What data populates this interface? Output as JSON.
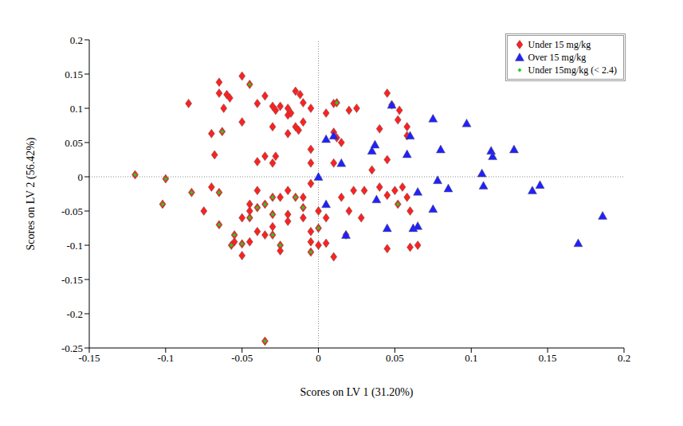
{
  "chart_data": {
    "type": "scatter",
    "x_label": "Scores on LV 1 (31.20%)",
    "y_label": "Scores on LV 2 (56.42%)",
    "xlim": [
      -0.15,
      0.2
    ],
    "xticks": [
      -0.15,
      -0.1,
      -0.05,
      0,
      0.05,
      0.1,
      0.15,
      0.2
    ],
    "ylim": [
      -0.25,
      0.2
    ],
    "yticks": [
      -0.25,
      -0.2,
      -0.15,
      -0.1,
      -0.05,
      0,
      0.05,
      0.1,
      0.15,
      0.2
    ],
    "grid": false,
    "legend": "upper right",
    "series": [
      {
        "name": "Under 15 mg/kg",
        "color": "#ff2020",
        "marker": "diamond",
        "x": [
          -0.085,
          -0.065,
          -0.065,
          -0.06,
          -0.062,
          -0.058,
          -0.05,
          -0.07,
          -0.063,
          -0.068,
          -0.05,
          -0.045,
          -0.04,
          -0.035,
          -0.04,
          -0.03,
          -0.028,
          -0.025,
          -0.02,
          -0.02,
          -0.018,
          -0.015,
          -0.012,
          -0.01,
          -0.01,
          -0.015,
          -0.013,
          -0.02,
          -0.005,
          -0.035,
          -0.028,
          -0.03,
          -0.03,
          -0.005,
          0.005,
          0.01,
          0.012,
          0.01,
          0.012,
          0.015,
          0.02,
          0.025,
          0.01,
          0.04,
          0.045,
          0.048,
          0.053,
          0.052,
          0.058,
          0.058,
          0.045,
          0.035,
          -0.005,
          -0.12,
          -0.1,
          -0.102,
          -0.083,
          -0.07,
          -0.065,
          -0.075,
          -0.065,
          -0.055,
          -0.055,
          -0.057,
          -0.05,
          -0.05,
          -0.045,
          -0.045,
          -0.04,
          -0.035,
          -0.03,
          -0.035,
          -0.04,
          -0.045,
          -0.03,
          -0.025,
          -0.02,
          -0.02,
          -0.02,
          -0.025,
          -0.025,
          -0.01,
          -0.01,
          -0.01,
          -0.005,
          0.0,
          0.005,
          -0.005,
          -0.005,
          0.0,
          0.005,
          -0.005,
          0.01,
          0.015,
          0.02,
          0.023,
          0.028,
          0.03,
          0.04,
          0.045,
          0.05,
          0.045,
          0.055,
          0.06,
          0.052,
          0.058,
          0.06,
          0.065,
          0.018,
          -0.035,
          -0.05,
          -0.045,
          -0.04,
          -0.03,
          -0.03,
          -0.015,
          0.0
        ],
        "y": [
          0.107,
          0.138,
          0.122,
          0.12,
          0.1,
          0.115,
          0.08,
          0.063,
          0.066,
          0.032,
          0.147,
          0.135,
          0.107,
          0.03,
          0.022,
          0.103,
          0.097,
          0.103,
          0.1,
          0.09,
          0.093,
          0.125,
          0.12,
          0.108,
          0.08,
          0.073,
          0.068,
          0.063,
          0.1,
          0.118,
          0.03,
          0.02,
          0.073,
          0.04,
          0.093,
          0.107,
          0.108,
          0.065,
          0.057,
          0.05,
          0.097,
          0.1,
          0.02,
          0.07,
          0.122,
          0.105,
          0.097,
          0.083,
          0.073,
          0.06,
          0.025,
          0.01,
          0.02,
          0.003,
          -0.003,
          -0.04,
          -0.023,
          -0.015,
          -0.023,
          -0.05,
          -0.07,
          -0.085,
          -0.095,
          -0.1,
          -0.115,
          -0.06,
          -0.05,
          -0.04,
          -0.02,
          -0.04,
          -0.055,
          -0.085,
          -0.08,
          -0.095,
          -0.073,
          -0.03,
          -0.02,
          -0.055,
          -0.065,
          -0.1,
          -0.108,
          -0.06,
          -0.045,
          -0.03,
          -0.01,
          -0.05,
          -0.06,
          -0.08,
          -0.11,
          -0.1,
          -0.097,
          -0.095,
          -0.117,
          -0.03,
          -0.05,
          -0.02,
          -0.06,
          -0.02,
          -0.015,
          -0.027,
          -0.02,
          -0.105,
          -0.015,
          -0.05,
          -0.04,
          -0.03,
          -0.103,
          -0.1,
          -0.085,
          -0.24,
          -0.098,
          -0.06,
          -0.045,
          -0.03,
          -0.085,
          -0.03,
          -0.075
        ]
      },
      {
        "name": "Over 15 mg/kg",
        "color": "#2020ff",
        "marker": "triangle",
        "x": [
          0.005,
          0.01,
          0.0,
          0.005,
          0.015,
          0.018,
          0.035,
          0.037,
          0.038,
          0.045,
          0.048,
          0.058,
          0.06,
          0.062,
          0.065,
          0.065,
          0.075,
          0.078,
          0.08,
          0.085,
          0.075,
          0.097,
          0.107,
          0.108,
          0.113,
          0.114,
          0.128,
          0.14,
          0.145,
          0.17,
          0.186
        ],
        "y": [
          0.055,
          0.06,
          0.0,
          -0.04,
          0.02,
          -0.085,
          0.038,
          0.047,
          -0.033,
          -0.075,
          0.105,
          0.033,
          0.06,
          -0.075,
          -0.072,
          -0.022,
          0.085,
          -0.005,
          0.04,
          -0.017,
          -0.047,
          0.078,
          0.005,
          -0.013,
          0.038,
          0.03,
          0.04,
          -0.02,
          -0.012,
          -0.097,
          -0.057
        ]
      },
      {
        "name": "Under 15mg/kg (< 2.4)",
        "color": "#22cc22",
        "marker": "dot",
        "x": [
          -0.12,
          -0.1,
          -0.102,
          -0.083,
          -0.065,
          -0.063,
          -0.045,
          -0.065,
          -0.055,
          -0.057,
          -0.05,
          -0.045,
          -0.04,
          -0.035,
          -0.03,
          -0.03,
          -0.03,
          -0.025,
          -0.015,
          -0.01,
          0.0,
          -0.005,
          0.012,
          -0.035,
          0.052
        ],
        "y": [
          0.003,
          -0.003,
          -0.04,
          -0.023,
          -0.023,
          0.066,
          0.135,
          -0.07,
          -0.085,
          -0.1,
          -0.098,
          -0.06,
          -0.045,
          -0.04,
          -0.03,
          -0.055,
          -0.085,
          -0.1,
          -0.03,
          -0.045,
          -0.075,
          -0.11,
          0.108,
          -0.24,
          -0.04
        ]
      }
    ]
  }
}
